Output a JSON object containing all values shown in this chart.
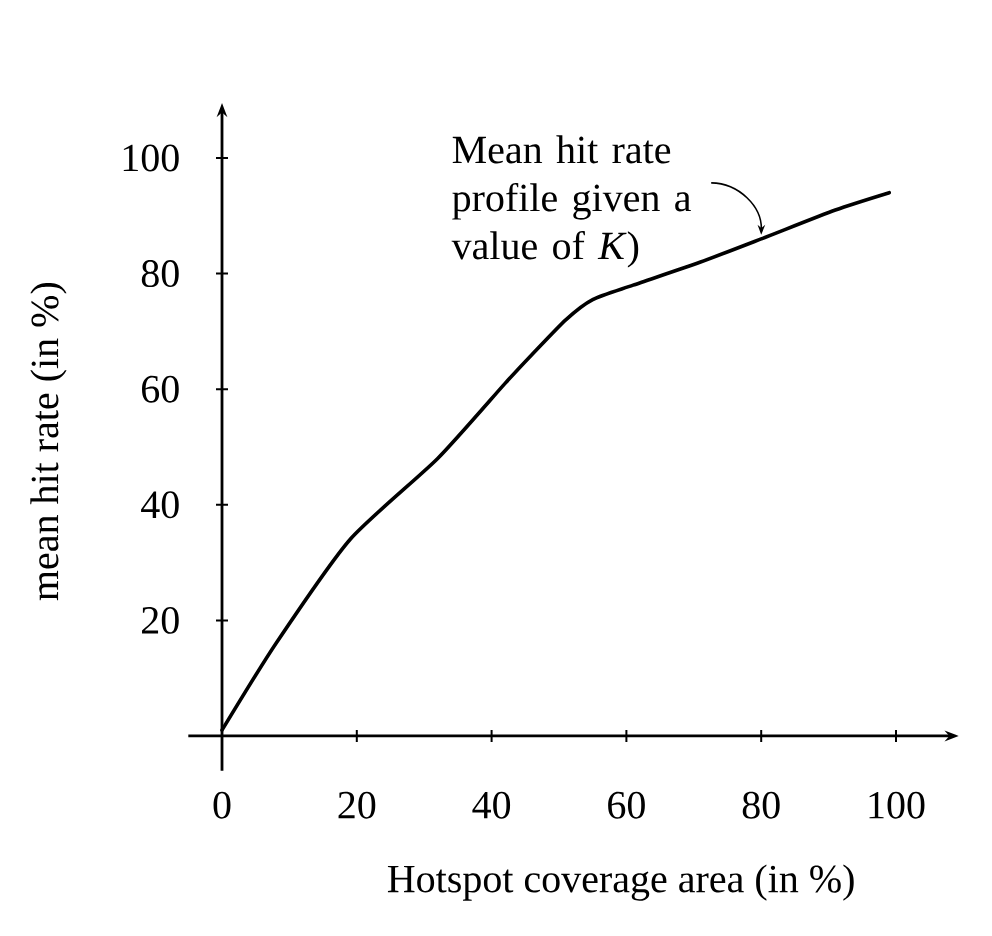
{
  "chart_data": {
    "type": "line",
    "xlabel": "Hotspot coverage area (in %)",
    "ylabel": "mean hit rate (in %)",
    "x": [
      0,
      8,
      19,
      32,
      42,
      46,
      51,
      55,
      61,
      71,
      80,
      91,
      99
    ],
    "series": [
      {
        "color": "#000000",
        "values": [
          1,
          16,
          34,
          48,
          61,
          66,
          72,
          75.5,
          78,
          82,
          86,
          91,
          94
        ]
      }
    ],
    "xlim": [
      -5,
      108
    ],
    "ylim": [
      -6,
      108
    ],
    "xticks": [
      0,
      20,
      40,
      60,
      80,
      100
    ],
    "yticks": [
      20,
      40,
      60,
      80,
      100
    ],
    "annotations": [
      {
        "text": "Mean hit rate profile given a value of *K*)",
        "x": 80,
        "y": 86
      }
    ],
    "marker": "none",
    "line_style": "solid"
  }
}
